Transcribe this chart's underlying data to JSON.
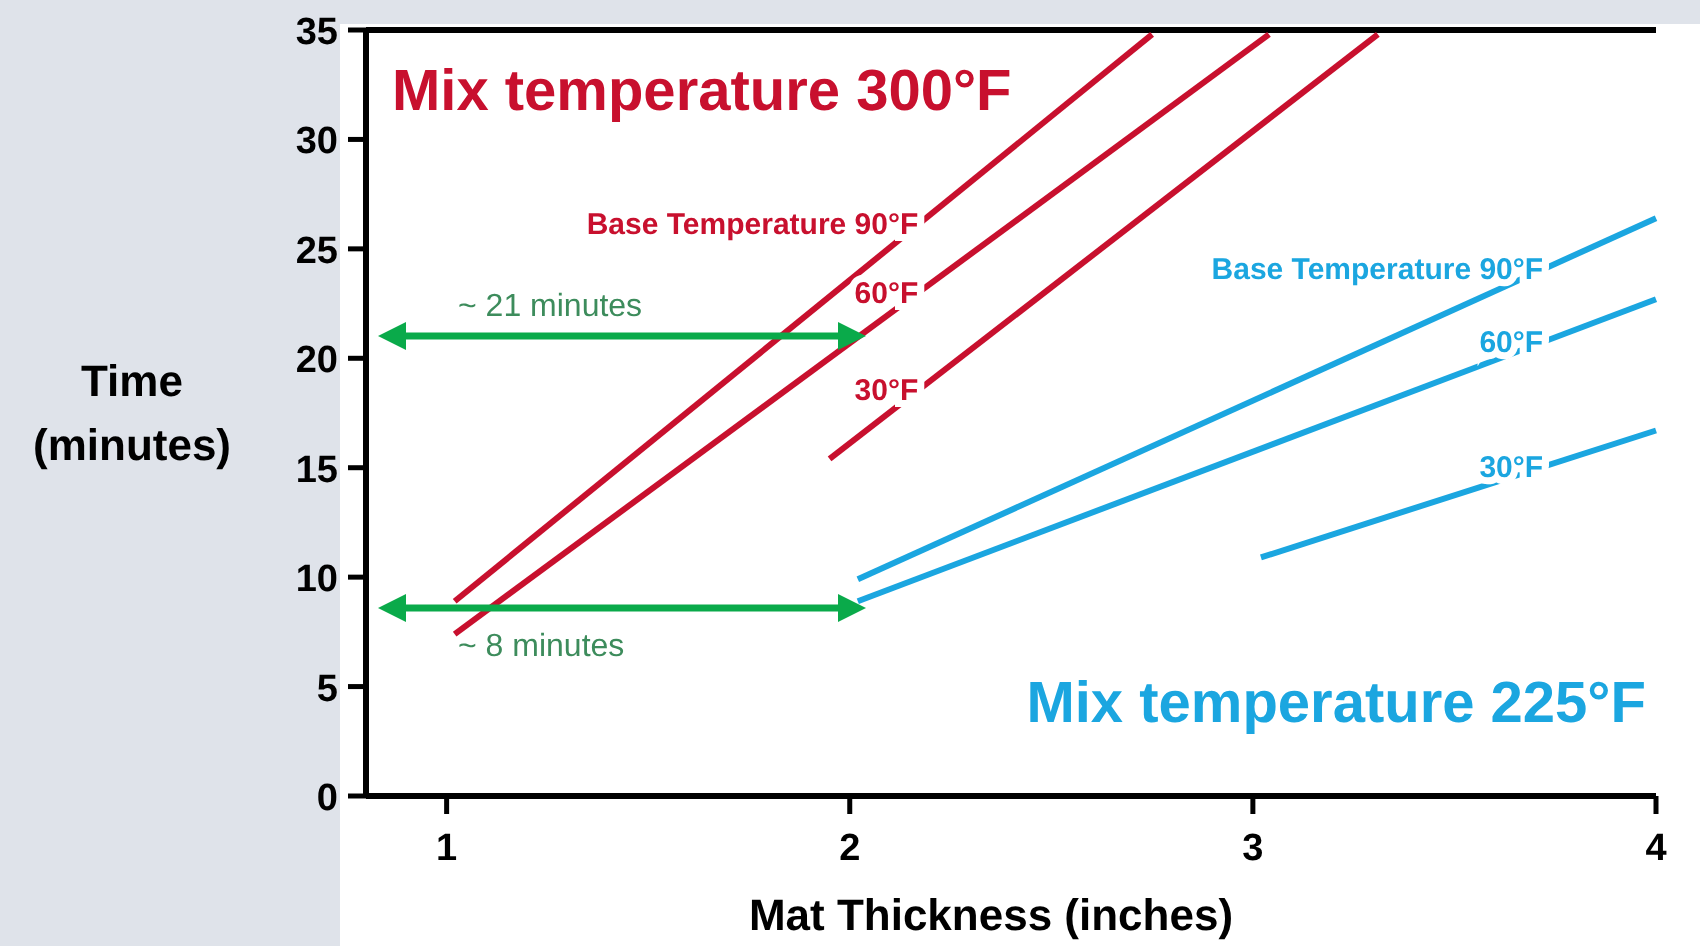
{
  "chart_data": {
    "type": "line",
    "xlabel": "Mat Thickness (inches)",
    "ylabel": "Time\n(minutes)",
    "xlim": [
      0.8,
      4.0
    ],
    "xticks": [
      1,
      2,
      3,
      4
    ],
    "ylim": [
      0,
      35
    ],
    "yticks": [
      0,
      5,
      10,
      15,
      20,
      25,
      30,
      35
    ],
    "grid": false,
    "legend": false,
    "marker": "none",
    "line_style": "solid",
    "series": [
      {
        "name": "Base Temperature 90°F",
        "color": "#c8102e",
        "x": [
          1.02,
          2.75
        ],
        "values": [
          8.9,
          34.8
        ]
      },
      {
        "name": "60°F",
        "color": "#c8102e",
        "x": [
          1.02,
          3.04
        ],
        "values": [
          7.4,
          34.8
        ]
      },
      {
        "name": "30°F",
        "color": "#c8102e",
        "x": [
          1.95,
          3.31
        ],
        "values": [
          15.4,
          34.8
        ]
      },
      {
        "name": "Base Temperature 90°F",
        "color": "#1ba6e0",
        "x": [
          2.02,
          4.0
        ],
        "values": [
          9.9,
          26.4
        ]
      },
      {
        "name": "60°F",
        "color": "#1ba6e0",
        "x": [
          2.02,
          4.0
        ],
        "values": [
          8.9,
          22.7
        ]
      },
      {
        "name": "30°F",
        "color": "#1ba6e0",
        "x": [
          3.02,
          4.0
        ],
        "values": [
          10.9,
          16.7
        ]
      }
    ],
    "annotations": [
      "Mix temperature 300°F",
      "Mix temperature 225°F",
      "~ 21 minutes",
      "~ 8 minutes"
    ]
  }
}
